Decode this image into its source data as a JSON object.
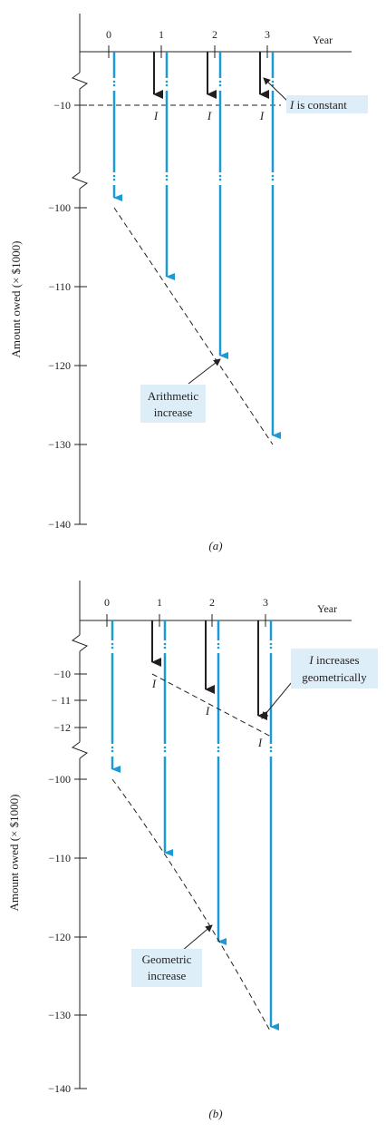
{
  "colors": {
    "cash_arrow": "#1a9ad6",
    "interest_arrow": "#231f20",
    "callout_bg": "#ddeef9",
    "axis": "#231f20"
  },
  "panel_a": {
    "caption": "(a)",
    "year_label": "Year",
    "y_axis_label": "Amount owed (× $1000)",
    "years": [
      "0",
      "1",
      "2",
      "3"
    ],
    "upper_ticks": [
      "−10"
    ],
    "lower_ticks": [
      "−100",
      "−110",
      "−120",
      "−130",
      "−140"
    ],
    "interest_labels": [
      "I",
      "I",
      "I"
    ],
    "callout_top": {
      "prefix": "I",
      "suffix": " is constant"
    },
    "callout_bottom": {
      "line1": "Arithmetic",
      "line2": "increase"
    }
  },
  "panel_b": {
    "caption": "(b)",
    "year_label": "Year",
    "y_axis_label": "Amount owed (× $1000)",
    "years": [
      "0",
      "1",
      "2",
      "3"
    ],
    "upper_ticks": [
      "−10",
      "− 11",
      "−12"
    ],
    "lower_ticks": [
      "−100",
      "−110",
      "−120",
      "−130",
      "−140"
    ],
    "interest_labels": [
      "I",
      "I",
      "I"
    ],
    "callout_top": {
      "prefix": "I",
      "suffix": " increases",
      "line2": "geometrically"
    },
    "callout_bottom": {
      "line1": "Geometric",
      "line2": "increase"
    }
  }
}
